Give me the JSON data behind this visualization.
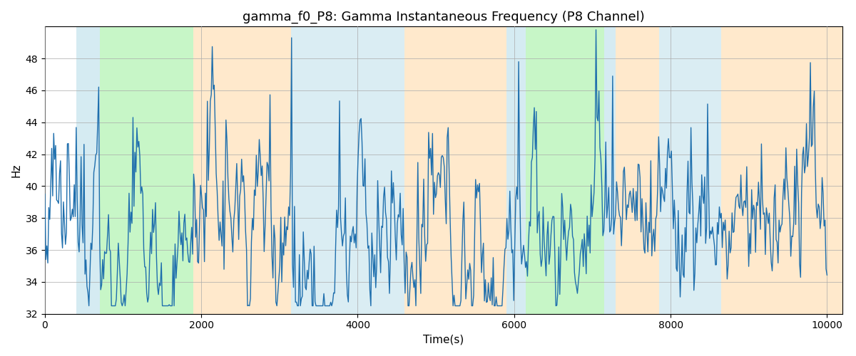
{
  "title": "gamma_f0_P8: Gamma Instantaneous Frequency (P8 Channel)",
  "xlabel": "Time(s)",
  "ylabel": "Hz",
  "xlim": [
    0,
    10200
  ],
  "ylim": [
    32,
    50
  ],
  "yticks": [
    32,
    34,
    36,
    38,
    40,
    42,
    44,
    46,
    48
  ],
  "xticks": [
    0,
    2000,
    4000,
    6000,
    8000,
    10000
  ],
  "line_color": "#1f6fad",
  "line_width": 1.0,
  "bg_color": "#ffffff",
  "grid_color": "#aaaaaa",
  "title_fontsize": 13,
  "label_fontsize": 11,
  "figsize": [
    12,
    5
  ],
  "dpi": 100,
  "bands": [
    {
      "xmin": 400,
      "xmax": 700,
      "color": "#add8e6",
      "alpha": 0.5
    },
    {
      "xmin": 700,
      "xmax": 1900,
      "color": "#90ee90",
      "alpha": 0.5
    },
    {
      "xmin": 1900,
      "xmax": 3150,
      "color": "#ffd59a",
      "alpha": 0.5
    },
    {
      "xmin": 3150,
      "xmax": 4600,
      "color": "#add8e6",
      "alpha": 0.45
    },
    {
      "xmin": 4600,
      "xmax": 5900,
      "color": "#ffd59a",
      "alpha": 0.5
    },
    {
      "xmin": 5900,
      "xmax": 6150,
      "color": "#add8e6",
      "alpha": 0.5
    },
    {
      "xmin": 6150,
      "xmax": 7150,
      "color": "#90ee90",
      "alpha": 0.5
    },
    {
      "xmin": 7150,
      "xmax": 7300,
      "color": "#add8e6",
      "alpha": 0.5
    },
    {
      "xmin": 7300,
      "xmax": 7850,
      "color": "#ffd59a",
      "alpha": 0.5
    },
    {
      "xmin": 7850,
      "xmax": 8650,
      "color": "#add8e6",
      "alpha": 0.45
    },
    {
      "xmin": 8650,
      "xmax": 10200,
      "color": "#ffd59a",
      "alpha": 0.5
    }
  ],
  "seed": 12345,
  "n_points": 800
}
